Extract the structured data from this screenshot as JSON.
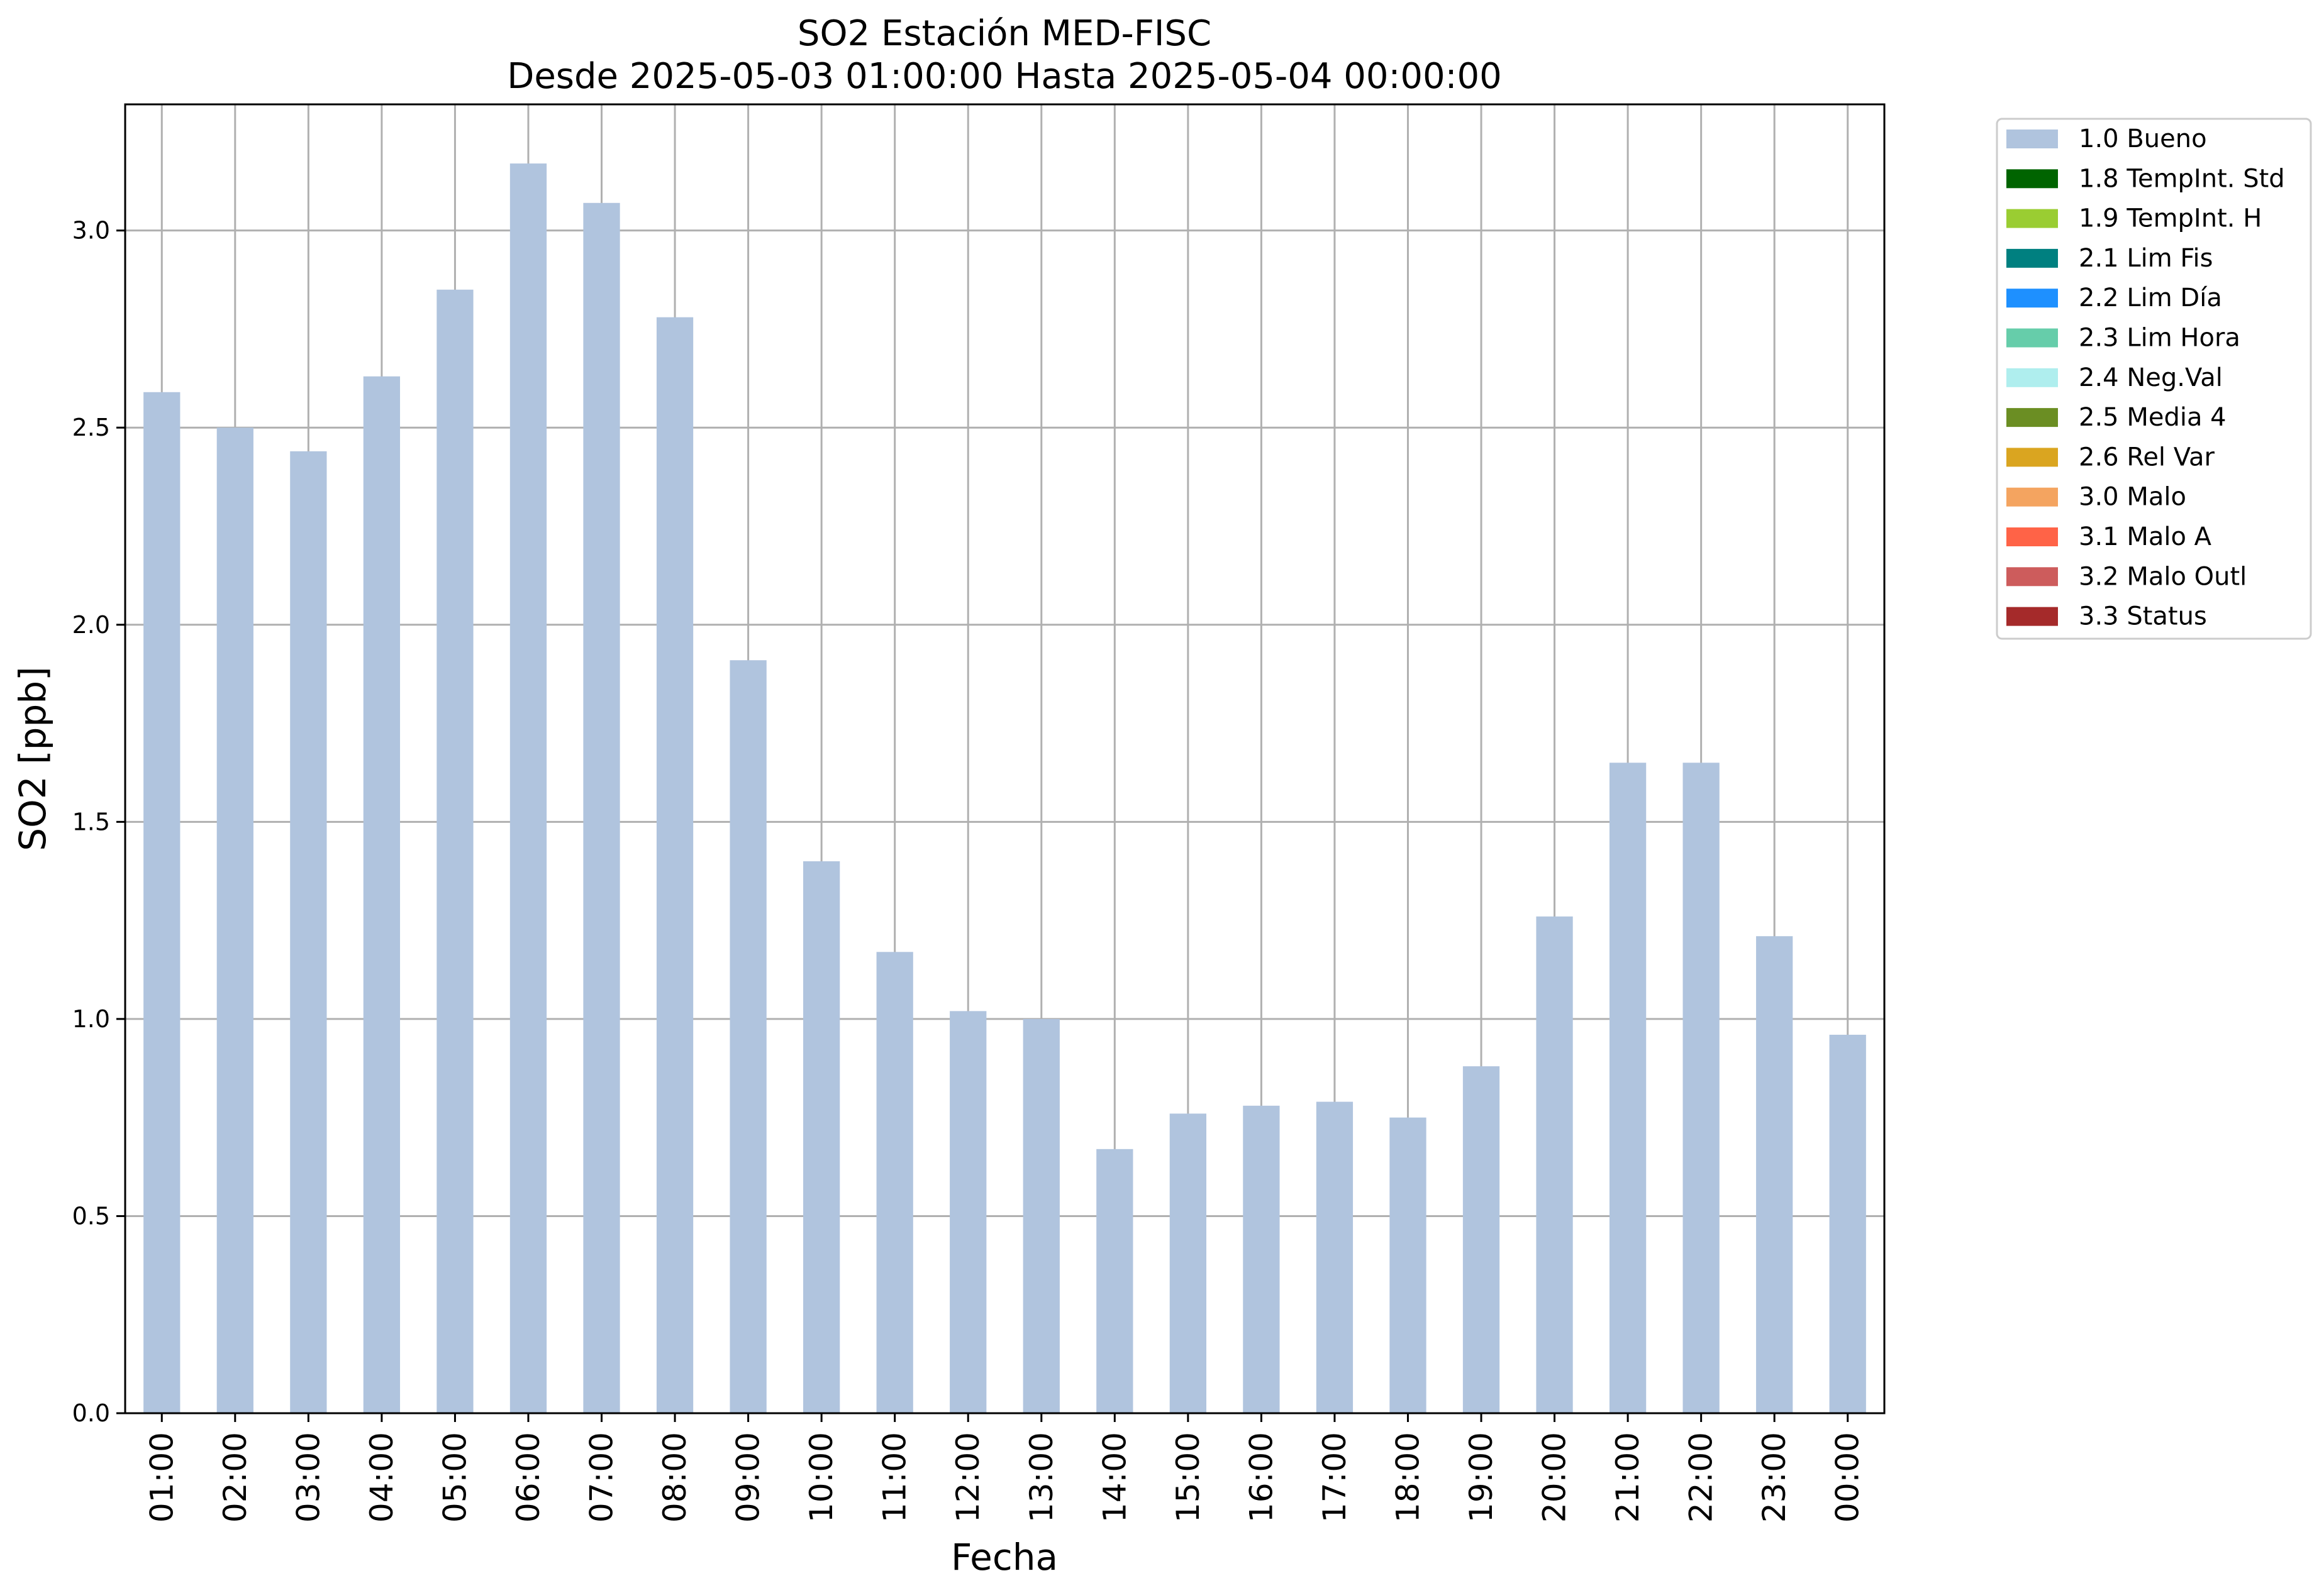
{
  "chart_data": {
    "type": "bar",
    "title": "SO2 Estación MED-FISC",
    "subtitle": "Desde 2025-05-03 01:00:00 Hasta 2025-05-04 00:00:00",
    "xlabel": "Fecha",
    "ylabel": "SO2 [ppb]",
    "ylim": [
      0,
      3.32
    ],
    "yticks": [
      "0.0",
      "0.5",
      "1.0",
      "1.5",
      "2.0",
      "2.5",
      "3.0"
    ],
    "grid": true,
    "legend_position": "outside-top-right",
    "categories": [
      "01:00",
      "02:00",
      "03:00",
      "04:00",
      "05:00",
      "06:00",
      "07:00",
      "08:00",
      "09:00",
      "10:00",
      "11:00",
      "12:00",
      "13:00",
      "14:00",
      "15:00",
      "16:00",
      "17:00",
      "18:00",
      "19:00",
      "20:00",
      "21:00",
      "22:00",
      "23:00",
      "00:00"
    ],
    "series": [
      {
        "name": "1.0 Bueno",
        "color": "#b0c4de",
        "values": [
          2.59,
          2.5,
          2.44,
          2.63,
          2.85,
          3.17,
          3.07,
          2.78,
          1.91,
          1.4,
          1.17,
          1.02,
          1.0,
          0.67,
          0.76,
          0.78,
          0.79,
          0.75,
          0.88,
          1.26,
          1.65,
          1.65,
          1.21,
          0.96
        ]
      }
    ],
    "legend": [
      {
        "label": "1.0 Bueno",
        "color": "#b0c4de"
      },
      {
        "label": "1.8 TempInt. Std",
        "color": "#006400"
      },
      {
        "label": "1.9 TempInt. H",
        "color": "#9acd32"
      },
      {
        "label": "2.1 Lim Fis",
        "color": "#008080"
      },
      {
        "label": "2.2 Lim Día",
        "color": "#1e90ff"
      },
      {
        "label": "2.3 Lim Hora",
        "color": "#66cdaa"
      },
      {
        "label": "2.4 Neg.Val",
        "color": "#afeeee"
      },
      {
        "label": "2.5 Media 4",
        "color": "#6b8e23"
      },
      {
        "label": "2.6 Rel Var",
        "color": "#daa520"
      },
      {
        "label": "3.0 Malo",
        "color": "#f4a460"
      },
      {
        "label": "3.1 Malo A",
        "color": "#ff6347"
      },
      {
        "label": "3.2 Malo Outl",
        "color": "#cd5c5c"
      },
      {
        "label": "3.3 Status",
        "color": "#a52a2a"
      }
    ]
  }
}
